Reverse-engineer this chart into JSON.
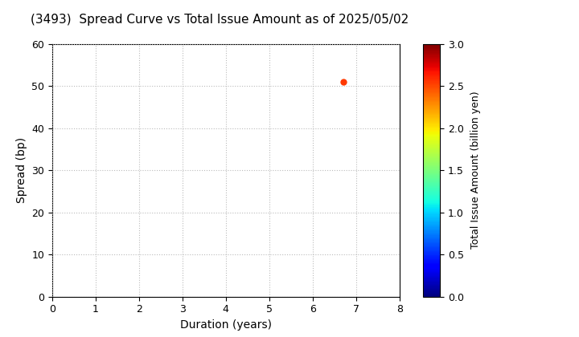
{
  "title": "(3493)  Spread Curve vs Total Issue Amount as of 2025/05/02",
  "xlabel": "Duration (years)",
  "ylabel": "Spread (bp)",
  "colorbar_label": "Total Issue Amount (billion yen)",
  "xlim": [
    0,
    8
  ],
  "ylim": [
    0,
    60
  ],
  "clim": [
    0.0,
    3.0
  ],
  "xticks": [
    0,
    1,
    2,
    3,
    4,
    5,
    6,
    7,
    8
  ],
  "yticks": [
    0,
    10,
    20,
    30,
    40,
    50,
    60
  ],
  "colorbar_ticks": [
    0.0,
    0.5,
    1.0,
    1.5,
    2.0,
    2.5,
    3.0
  ],
  "data_points": [
    {
      "duration": 6.7,
      "spread": 51,
      "amount": 2.55
    }
  ],
  "marker_size": 5,
  "grid_color": "#bbbbbb",
  "grid_style": "dotted",
  "background_color": "#ffffff",
  "colormap": "jet",
  "title_fontsize": 11,
  "axis_label_fontsize": 10,
  "tick_fontsize": 9,
  "colorbar_label_fontsize": 9
}
